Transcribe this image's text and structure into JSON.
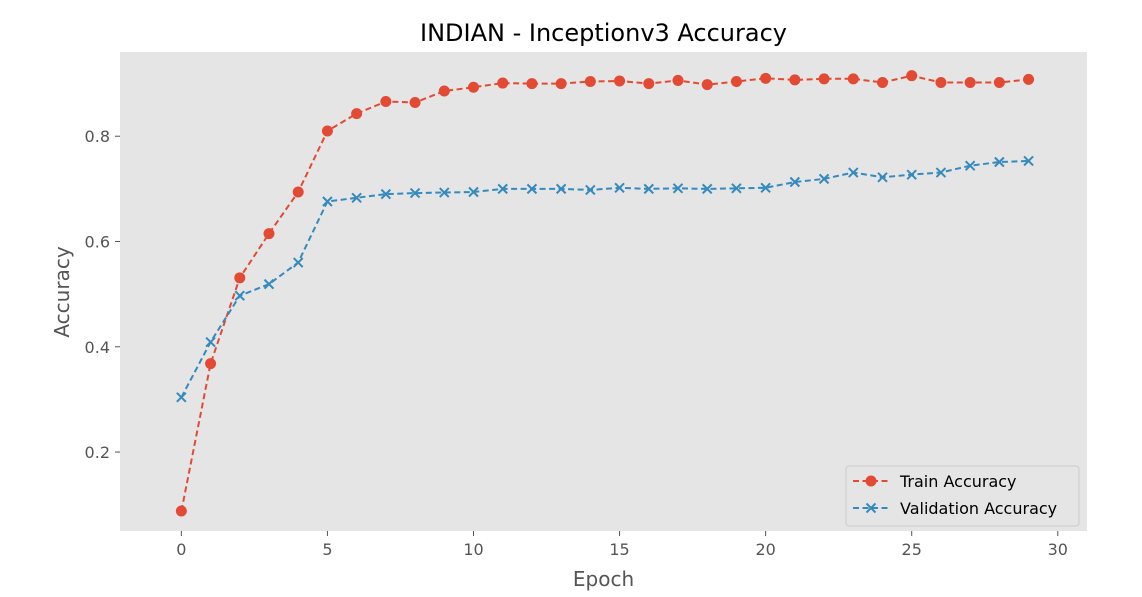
{
  "chart_data": {
    "type": "line",
    "title": "INDIAN - Inceptionv3 Accuracy",
    "xlabel": "Epoch",
    "ylabel": "Accuracy",
    "xlim": [
      -2.1,
      31.0
    ],
    "ylim": [
      0.05,
      0.96
    ],
    "xticks": [
      0,
      5,
      10,
      15,
      20,
      25,
      30
    ],
    "yticks": [
      0.2,
      0.4,
      0.6,
      0.8
    ],
    "grid": false,
    "legend_position": "bottom-right",
    "x": [
      0,
      1,
      2,
      3,
      4,
      5,
      6,
      7,
      8,
      9,
      10,
      11,
      12,
      13,
      14,
      15,
      16,
      17,
      18,
      19,
      20,
      21,
      22,
      23,
      24,
      25,
      26,
      27,
      28,
      29
    ],
    "series": [
      {
        "name": "Train Accuracy",
        "color": "#E24A33",
        "marker": "circle",
        "linestyle": "dashed",
        "values": [
          0.088,
          0.368,
          0.531,
          0.615,
          0.694,
          0.81,
          0.843,
          0.866,
          0.864,
          0.886,
          0.893,
          0.901,
          0.9,
          0.9,
          0.904,
          0.905,
          0.9,
          0.906,
          0.898,
          0.904,
          0.91,
          0.907,
          0.909,
          0.909,
          0.902,
          0.915,
          0.902,
          0.902,
          0.902,
          0.908
        ]
      },
      {
        "name": "Validation Accuracy",
        "color": "#348ABD",
        "marker": "x",
        "linestyle": "dashed",
        "values": [
          0.304,
          0.409,
          0.497,
          0.519,
          0.56,
          0.676,
          0.683,
          0.69,
          0.692,
          0.693,
          0.694,
          0.7,
          0.7,
          0.7,
          0.698,
          0.702,
          0.7,
          0.701,
          0.7,
          0.701,
          0.702,
          0.713,
          0.719,
          0.731,
          0.722,
          0.727,
          0.731,
          0.744,
          0.751,
          0.753
        ]
      }
    ]
  }
}
